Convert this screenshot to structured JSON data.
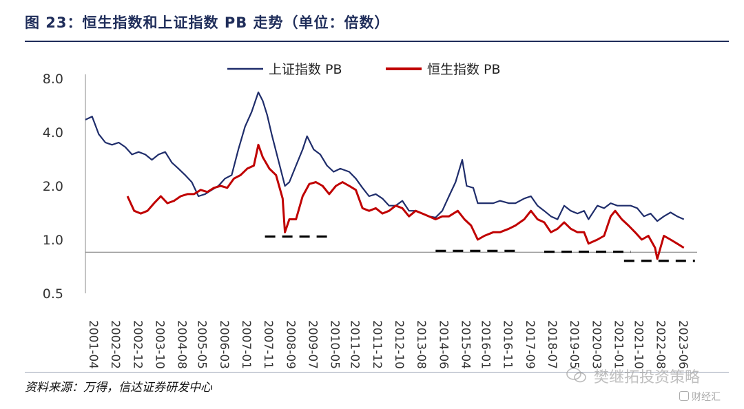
{
  "figure": {
    "title": "图 23：恒生指数和上证指数 PB 走势（单位：倍数）",
    "source": "资料来源：万得，信达证券研发中心",
    "watermark": "樊继拓投资策略",
    "watermark_sub": "财经汇"
  },
  "chart_data": {
    "type": "line",
    "y_scale": "log",
    "ylim": [
      0.5,
      8.0
    ],
    "yticks": [
      "8.0",
      "4.0",
      "2.0",
      "1.0",
      "0.5"
    ],
    "ytick_values": [
      8.0,
      4.0,
      2.0,
      1.0,
      0.5
    ],
    "xlim": [
      "2001-04",
      "2024-04"
    ],
    "xticks": [
      "2001-04",
      "2002-02",
      "2002-12",
      "2003-10",
      "2004-08",
      "2005-05",
      "2006-03",
      "2007-01",
      "2007-11",
      "2008-09",
      "2009-07",
      "2010-05",
      "2011-02",
      "2011-12",
      "2012-10",
      "2013-08",
      "2014-06",
      "2015-04",
      "2016-01",
      "2016-11",
      "2017-09",
      "2018-07",
      "2019-05",
      "2020-03",
      "2021-01",
      "2021-10",
      "2022-08",
      "2023-06"
    ],
    "legend_position": "top",
    "grid": false,
    "reference_line": 0.85,
    "series": [
      {
        "name": "上证指数 PB",
        "color": "#1f2d6b",
        "points": [
          [
            "2001-04",
            4.7
          ],
          [
            "2001-07",
            4.9
          ],
          [
            "2001-10",
            3.9
          ],
          [
            "2002-01",
            3.5
          ],
          [
            "2002-04",
            3.4
          ],
          [
            "2002-07",
            3.5
          ],
          [
            "2002-10",
            3.3
          ],
          [
            "2003-01",
            3.0
          ],
          [
            "2003-04",
            3.1
          ],
          [
            "2003-07",
            3.0
          ],
          [
            "2003-10",
            2.8
          ],
          [
            "2004-01",
            3.0
          ],
          [
            "2004-04",
            3.1
          ],
          [
            "2004-07",
            2.7
          ],
          [
            "2004-10",
            2.5
          ],
          [
            "2005-01",
            2.3
          ],
          [
            "2005-04",
            2.1
          ],
          [
            "2005-07",
            1.75
          ],
          [
            "2005-10",
            1.8
          ],
          [
            "2006-01",
            1.9
          ],
          [
            "2006-04",
            2.0
          ],
          [
            "2006-07",
            2.2
          ],
          [
            "2006-10",
            2.3
          ],
          [
            "2007-01",
            3.2
          ],
          [
            "2007-04",
            4.3
          ],
          [
            "2007-07",
            5.2
          ],
          [
            "2007-10",
            6.7
          ],
          [
            "2007-12",
            6.0
          ],
          [
            "2008-02",
            5.0
          ],
          [
            "2008-04",
            3.9
          ],
          [
            "2008-07",
            2.8
          ],
          [
            "2008-10",
            2.0
          ],
          [
            "2008-12",
            2.1
          ],
          [
            "2009-03",
            2.6
          ],
          [
            "2009-06",
            3.2
          ],
          [
            "2009-08",
            3.8
          ],
          [
            "2009-11",
            3.2
          ],
          [
            "2010-02",
            3.0
          ],
          [
            "2010-05",
            2.6
          ],
          [
            "2010-08",
            2.4
          ],
          [
            "2010-11",
            2.5
          ],
          [
            "2011-03",
            2.4
          ],
          [
            "2011-06",
            2.2
          ],
          [
            "2011-09",
            1.95
          ],
          [
            "2011-12",
            1.75
          ],
          [
            "2012-03",
            1.8
          ],
          [
            "2012-06",
            1.7
          ],
          [
            "2012-09",
            1.55
          ],
          [
            "2012-12",
            1.55
          ],
          [
            "2013-03",
            1.65
          ],
          [
            "2013-06",
            1.45
          ],
          [
            "2013-09",
            1.45
          ],
          [
            "2013-12",
            1.4
          ],
          [
            "2014-03",
            1.35
          ],
          [
            "2014-06",
            1.33
          ],
          [
            "2014-09",
            1.45
          ],
          [
            "2014-12",
            1.75
          ],
          [
            "2015-03",
            2.1
          ],
          [
            "2015-06",
            2.8
          ],
          [
            "2015-08",
            2.0
          ],
          [
            "2015-11",
            1.95
          ],
          [
            "2016-01",
            1.6
          ],
          [
            "2016-04",
            1.6
          ],
          [
            "2016-08",
            1.6
          ],
          [
            "2016-11",
            1.65
          ],
          [
            "2017-03",
            1.6
          ],
          [
            "2017-06",
            1.6
          ],
          [
            "2017-10",
            1.7
          ],
          [
            "2018-01",
            1.75
          ],
          [
            "2018-04",
            1.55
          ],
          [
            "2018-07",
            1.45
          ],
          [
            "2018-10",
            1.35
          ],
          [
            "2019-01",
            1.3
          ],
          [
            "2019-04",
            1.55
          ],
          [
            "2019-07",
            1.45
          ],
          [
            "2019-10",
            1.4
          ],
          [
            "2020-01",
            1.45
          ],
          [
            "2020-03",
            1.3
          ],
          [
            "2020-07",
            1.55
          ],
          [
            "2020-10",
            1.5
          ],
          [
            "2021-01",
            1.6
          ],
          [
            "2021-04",
            1.55
          ],
          [
            "2021-07",
            1.55
          ],
          [
            "2021-10",
            1.55
          ],
          [
            "2022-01",
            1.5
          ],
          [
            "2022-04",
            1.35
          ],
          [
            "2022-07",
            1.4
          ],
          [
            "2022-10",
            1.27
          ],
          [
            "2023-01",
            1.35
          ],
          [
            "2023-04",
            1.42
          ],
          [
            "2023-07",
            1.35
          ],
          [
            "2023-10",
            1.3
          ]
        ]
      },
      {
        "name": "恒生指数 PB",
        "color": "#c00000",
        "points": [
          [
            "2002-11",
            1.75
          ],
          [
            "2003-02",
            1.45
          ],
          [
            "2003-05",
            1.4
          ],
          [
            "2003-08",
            1.45
          ],
          [
            "2003-11",
            1.6
          ],
          [
            "2004-02",
            1.75
          ],
          [
            "2004-05",
            1.6
          ],
          [
            "2004-08",
            1.65
          ],
          [
            "2004-11",
            1.75
          ],
          [
            "2005-02",
            1.8
          ],
          [
            "2005-05",
            1.8
          ],
          [
            "2005-08",
            1.9
          ],
          [
            "2005-11",
            1.85
          ],
          [
            "2006-02",
            1.95
          ],
          [
            "2006-05",
            2.0
          ],
          [
            "2006-08",
            1.95
          ],
          [
            "2006-11",
            2.2
          ],
          [
            "2007-02",
            2.3
          ],
          [
            "2007-05",
            2.5
          ],
          [
            "2007-08",
            2.6
          ],
          [
            "2007-10",
            3.4
          ],
          [
            "2007-12",
            2.9
          ],
          [
            "2008-03",
            2.5
          ],
          [
            "2008-06",
            2.3
          ],
          [
            "2008-09",
            1.7
          ],
          [
            "2008-10",
            1.1
          ],
          [
            "2008-12",
            1.3
          ],
          [
            "2009-03",
            1.3
          ],
          [
            "2009-06",
            1.75
          ],
          [
            "2009-09",
            2.05
          ],
          [
            "2009-12",
            2.1
          ],
          [
            "2010-03",
            2.0
          ],
          [
            "2010-06",
            1.8
          ],
          [
            "2010-09",
            2.0
          ],
          [
            "2010-12",
            2.1
          ],
          [
            "2011-03",
            2.0
          ],
          [
            "2011-06",
            1.9
          ],
          [
            "2011-09",
            1.5
          ],
          [
            "2011-12",
            1.45
          ],
          [
            "2012-03",
            1.5
          ],
          [
            "2012-06",
            1.4
          ],
          [
            "2012-09",
            1.45
          ],
          [
            "2012-12",
            1.55
          ],
          [
            "2013-03",
            1.5
          ],
          [
            "2013-06",
            1.35
          ],
          [
            "2013-09",
            1.45
          ],
          [
            "2013-12",
            1.4
          ],
          [
            "2014-03",
            1.35
          ],
          [
            "2014-06",
            1.3
          ],
          [
            "2014-09",
            1.35
          ],
          [
            "2014-12",
            1.35
          ],
          [
            "2015-04",
            1.45
          ],
          [
            "2015-07",
            1.3
          ],
          [
            "2015-10",
            1.2
          ],
          [
            "2016-01",
            1.0
          ],
          [
            "2016-04",
            1.05
          ],
          [
            "2016-08",
            1.1
          ],
          [
            "2016-11",
            1.1
          ],
          [
            "2017-03",
            1.15
          ],
          [
            "2017-06",
            1.2
          ],
          [
            "2017-10",
            1.3
          ],
          [
            "2018-01",
            1.45
          ],
          [
            "2018-04",
            1.3
          ],
          [
            "2018-07",
            1.25
          ],
          [
            "2018-10",
            1.1
          ],
          [
            "2019-01",
            1.15
          ],
          [
            "2019-04",
            1.25
          ],
          [
            "2019-07",
            1.15
          ],
          [
            "2019-10",
            1.1
          ],
          [
            "2020-01",
            1.1
          ],
          [
            "2020-03",
            0.95
          ],
          [
            "2020-07",
            1.0
          ],
          [
            "2020-10",
            1.05
          ],
          [
            "2021-01",
            1.35
          ],
          [
            "2021-03",
            1.45
          ],
          [
            "2021-06",
            1.3
          ],
          [
            "2021-09",
            1.2
          ],
          [
            "2021-12",
            1.1
          ],
          [
            "2022-03",
            1.0
          ],
          [
            "2022-06",
            1.05
          ],
          [
            "2022-09",
            0.9
          ],
          [
            "2022-10",
            0.78
          ],
          [
            "2023-01",
            1.05
          ],
          [
            "2023-04",
            1.0
          ],
          [
            "2023-07",
            0.95
          ],
          [
            "2023-10",
            0.9
          ]
        ]
      }
    ],
    "dashed_levels": [
      {
        "x_start": "2008-01",
        "x_end": "2010-05",
        "y": 1.04
      },
      {
        "x_start": "2014-06",
        "x_end": "2017-06",
        "y": 0.865
      },
      {
        "x_start": "2018-07",
        "x_end": "2021-10",
        "y": 0.855
      },
      {
        "x_start": "2021-07",
        "x_end": "2024-03",
        "y": 0.76
      }
    ]
  }
}
